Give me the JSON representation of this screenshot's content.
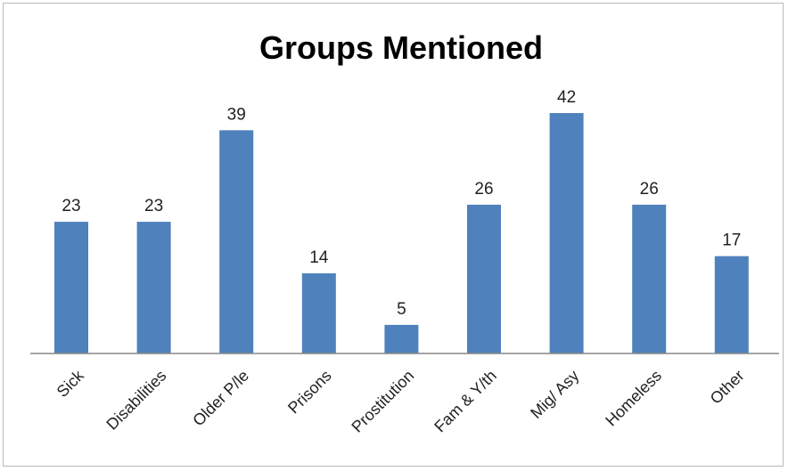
{
  "chart_data": {
    "type": "bar",
    "title": "Groups Mentioned",
    "categories": [
      "Sick",
      "Disabilities",
      "Older P/le",
      "Prisons",
      "Prostitution",
      "Fam & Y/th",
      "Mig/ Asy",
      "Homeless",
      "Other"
    ],
    "values": [
      23,
      23,
      39,
      14,
      5,
      26,
      42,
      26,
      17
    ],
    "ylim": [
      0,
      42
    ],
    "grid": false,
    "legend": "none",
    "bar_color": "#4f81bd",
    "axis_color": "#878787"
  }
}
